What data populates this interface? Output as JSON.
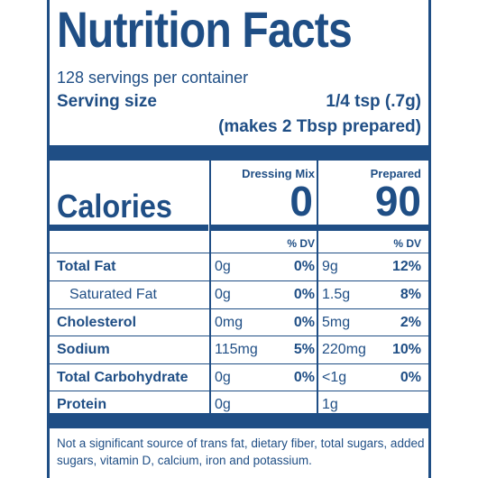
{
  "title": "Nutrition Facts",
  "servings_per_container": "128 servings per container",
  "serving_size_label": "Serving size",
  "serving_size_value": "1/4 tsp (.7g)",
  "serving_size_prepared": "(makes 2 Tbsp prepared)",
  "columns": [
    {
      "header": "Dressing Mix",
      "calories": "0"
    },
    {
      "header": "Prepared",
      "calories": "90"
    }
  ],
  "calories_label": "Calories",
  "dv_header": "% DV",
  "nutrients": [
    {
      "name": "Total Fat",
      "bold": true,
      "indent": false,
      "mix_amount": "0g",
      "mix_dv": "0%",
      "prep_amount": "9g",
      "prep_dv": "12%"
    },
    {
      "name": "Saturated Fat",
      "bold": false,
      "indent": true,
      "mix_amount": "0g",
      "mix_dv": "0%",
      "prep_amount": "1.5g",
      "prep_dv": "8%"
    },
    {
      "name": "Cholesterol",
      "bold": true,
      "indent": false,
      "mix_amount": "0mg",
      "mix_dv": "0%",
      "prep_amount": "5mg",
      "prep_dv": "2%"
    },
    {
      "name": "Sodium",
      "bold": true,
      "indent": false,
      "mix_amount": "115mg",
      "mix_dv": "5%",
      "prep_amount": "220mg",
      "prep_dv": "10%"
    },
    {
      "name": "Total Carbohydrate",
      "bold": true,
      "indent": false,
      "mix_amount": "0g",
      "mix_dv": "0%",
      "prep_amount": "<1g",
      "prep_dv": "0%"
    },
    {
      "name": "Protein",
      "bold": true,
      "indent": false,
      "mix_amount": "0g",
      "mix_dv": "",
      "prep_amount": "1g",
      "prep_dv": ""
    }
  ],
  "footnote": "Not a significant source of trans fat, dietary fiber, total sugars, added sugars, vitamin D, calcium, iron and potassium.",
  "colors": {
    "label_blue": "#1f4e85",
    "background": "#ffffff"
  }
}
